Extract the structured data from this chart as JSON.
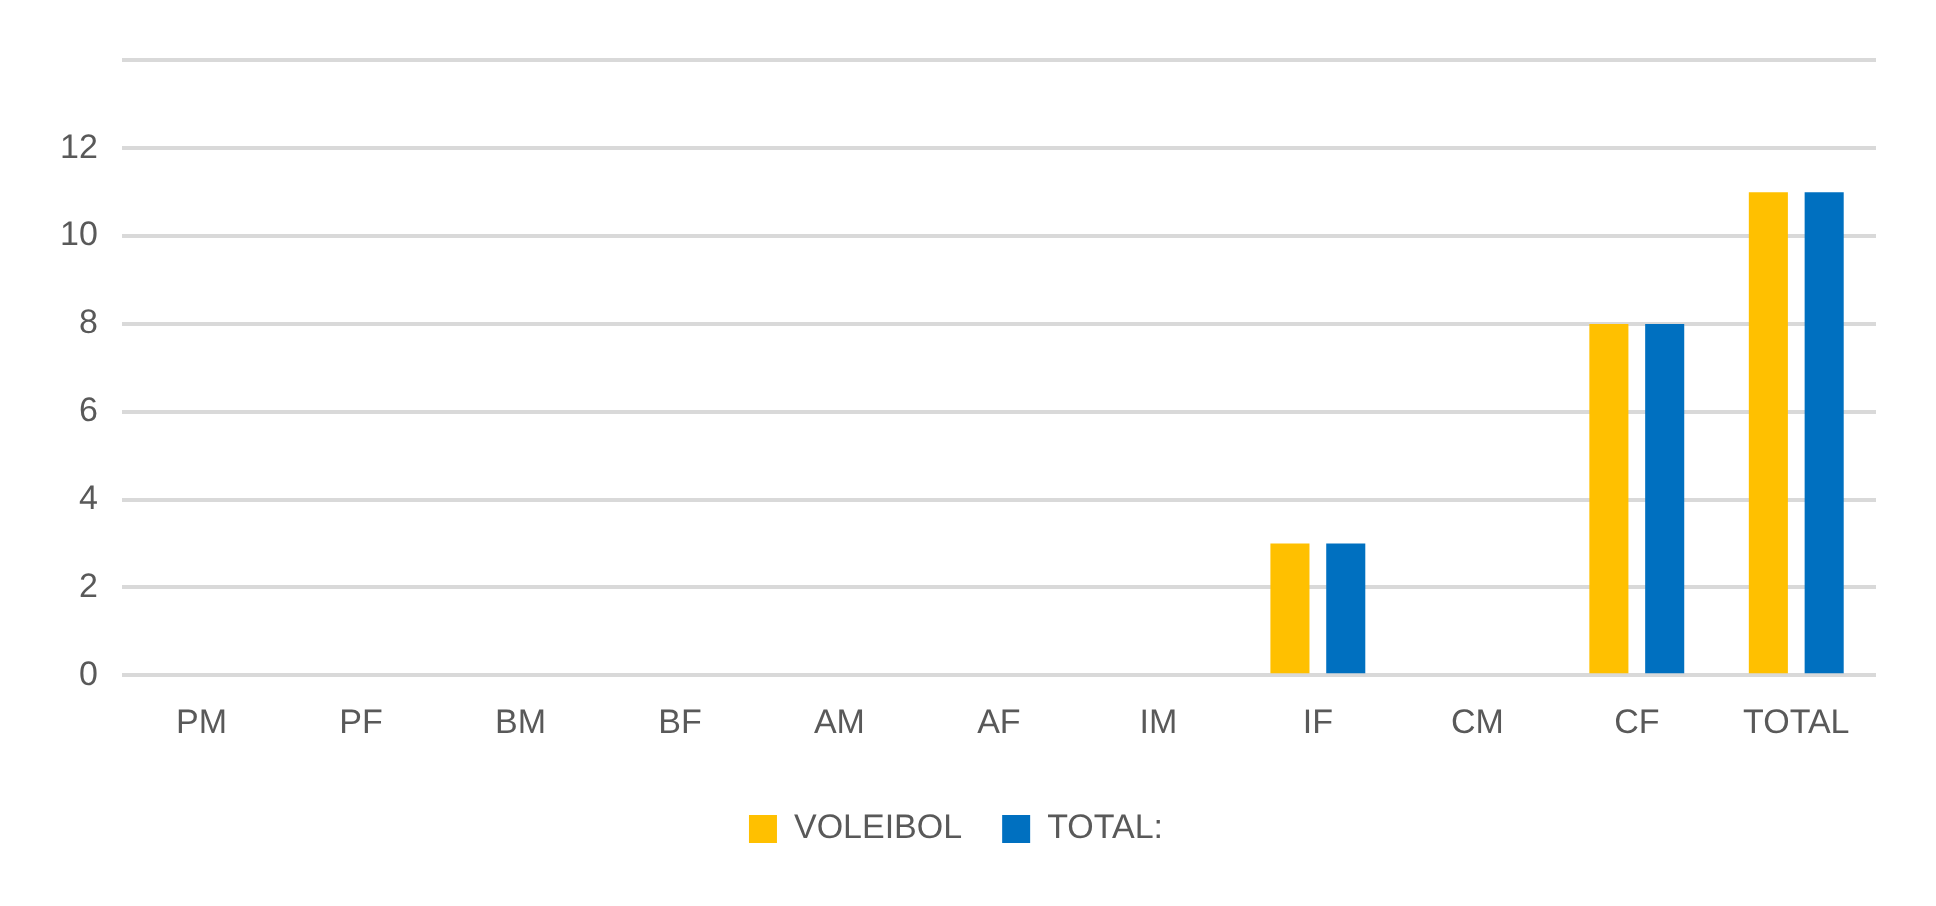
{
  "chart_data": {
    "type": "bar",
    "categories": [
      "PM",
      "PF",
      "BM",
      "BF",
      "AM",
      "AF",
      "IM",
      "IF",
      "CM",
      "CF",
      "TOTAL"
    ],
    "series": [
      {
        "name": "VOLEIBOL",
        "color": "#ffc000",
        "values": [
          0,
          0,
          0,
          0,
          0,
          0,
          0,
          3,
          0,
          8,
          11
        ]
      },
      {
        "name": "TOTAL:",
        "color": "#0070c0",
        "values": [
          0,
          0,
          0,
          0,
          0,
          0,
          0,
          3,
          0,
          8,
          11
        ]
      }
    ],
    "ylim": [
      0,
      14
    ],
    "yticks": [
      0,
      2,
      4,
      6,
      8,
      10,
      12,
      {
        "value": 14,
        "label": null
      }
    ],
    "grid": "y",
    "legend": "bottom"
  }
}
